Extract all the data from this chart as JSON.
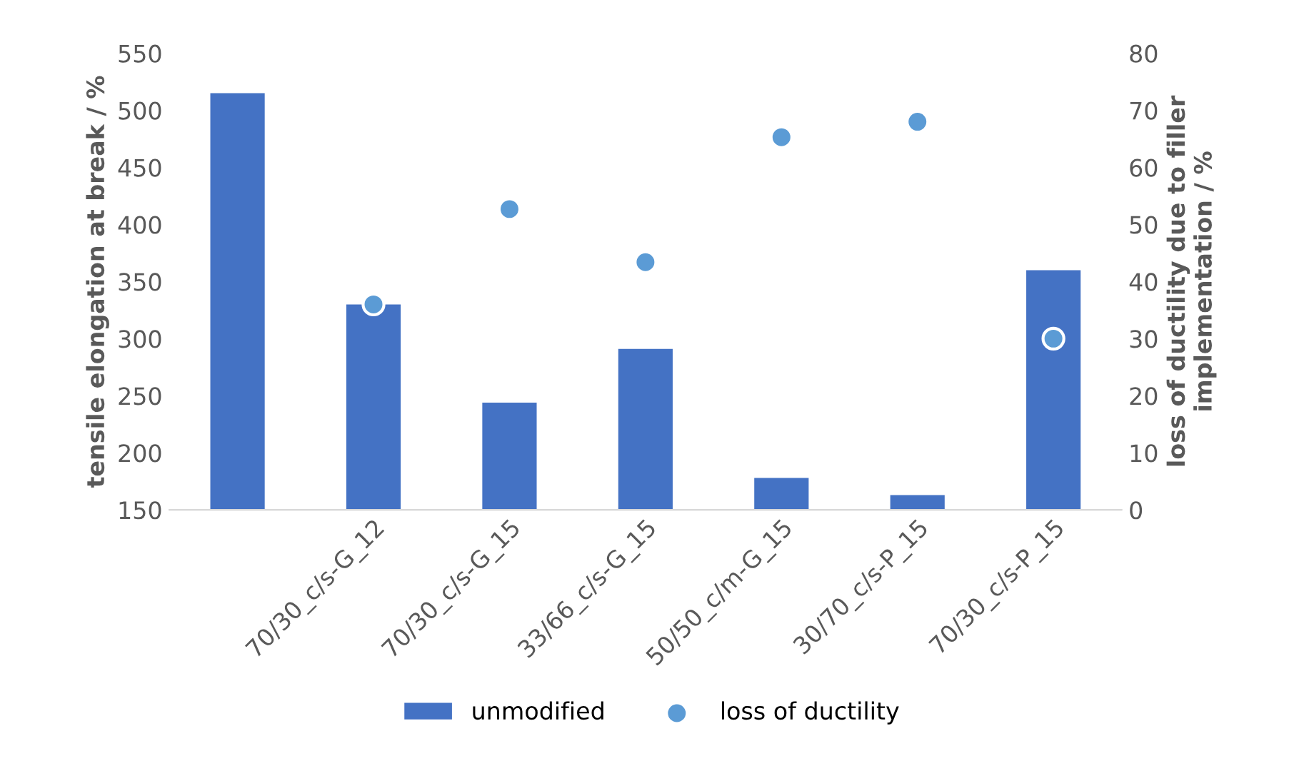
{
  "chart_data": {
    "type": "bar",
    "ylabel": "tensile elongation at break / %",
    "y2label": "loss of ductility due to filler implementation / %",
    "categories": [
      null,
      "70/30_c/s-G_12",
      "70/30_c/s-G_15",
      "33/66_c/s-G_15",
      "50/50_c/m-G_15",
      "30/70_c/s-P_15",
      "70/30_c/s-P_15"
    ],
    "series": [
      {
        "name": "unmodified",
        "color": "#4472c4",
        "values": [
          515,
          330,
          244,
          291,
          178,
          163,
          360
        ]
      },
      {
        "name": "loss of ductility",
        "type": "scatter",
        "axis": "y2",
        "color": "#5b9bd5",
        "marker": "circle",
        "values": [
          null,
          36,
          52.7,
          43.4,
          65.3,
          68,
          30
        ]
      }
    ],
    "ylim": [
      150,
      550
    ],
    "yticks": [
      150,
      200,
      250,
      300,
      350,
      400,
      450,
      500,
      550
    ],
    "y2lim": [
      0,
      80
    ],
    "y2ticks": [
      0,
      10,
      20,
      30,
      40,
      50,
      60,
      70,
      80
    ],
    "grid": false,
    "legend": "bottom"
  }
}
